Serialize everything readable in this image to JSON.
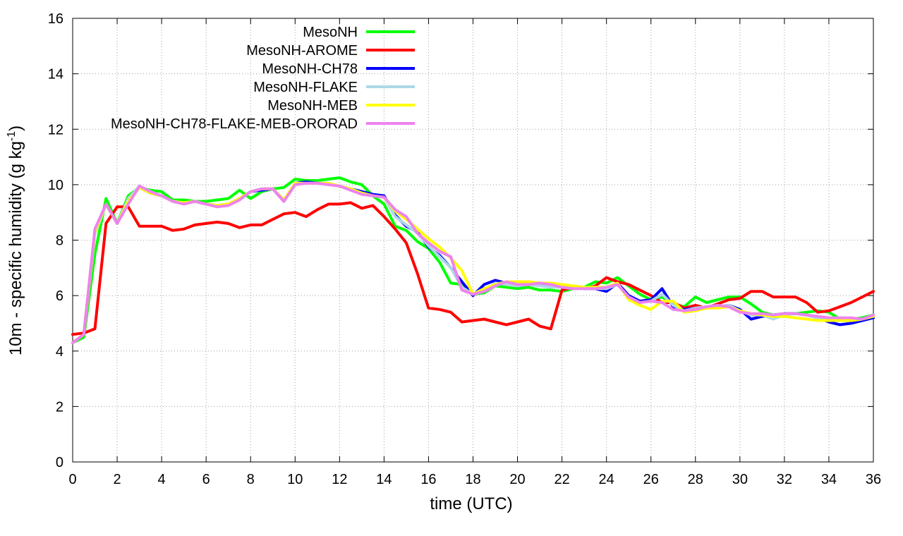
{
  "chart_data": {
    "type": "line",
    "title": "",
    "xlabel": "time (UTC)",
    "ylabel_main": "10m - specific humidity (g kg",
    "ylabel_sup": "-1",
    "ylabel_close": ")",
    "xlim": [
      0,
      36
    ],
    "ylim": [
      0,
      16
    ],
    "xticks": [
      0,
      2,
      4,
      6,
      8,
      10,
      12,
      14,
      16,
      18,
      20,
      22,
      24,
      26,
      28,
      30,
      32,
      34,
      36
    ],
    "yticks": [
      0,
      2,
      4,
      6,
      8,
      10,
      12,
      14,
      16
    ],
    "grid": true,
    "legend_position": "top-left",
    "series": [
      {
        "name": "MesoNH",
        "color": "#00ff00",
        "x": [
          0,
          0.5,
          1,
          1.5,
          2,
          2.5,
          3,
          3.5,
          4,
          4.5,
          5,
          5.5,
          6,
          6.5,
          7,
          7.5,
          8,
          8.5,
          9,
          9.5,
          10,
          10.5,
          11,
          11.5,
          12,
          12.5,
          13,
          13.5,
          14,
          14.5,
          15,
          15.5,
          16,
          16.5,
          17,
          17.5,
          18,
          18.5,
          19,
          19.5,
          20,
          20.5,
          21,
          21.5,
          22,
          22.5,
          23,
          23.5,
          24,
          24.5,
          25,
          25.5,
          26,
          26.5,
          27,
          27.5,
          28,
          28.5,
          29,
          29.5,
          30,
          30.5,
          31,
          31.5,
          32,
          32.5,
          33,
          33.5,
          34,
          34.5,
          35,
          35.5,
          36
        ],
        "values": [
          4.3,
          4.5,
          7.5,
          9.5,
          8.6,
          9.6,
          9.9,
          9.8,
          9.75,
          9.45,
          9.45,
          9.4,
          9.4,
          9.45,
          9.5,
          9.8,
          9.5,
          9.75,
          9.85,
          9.9,
          10.2,
          10.15,
          10.15,
          10.2,
          10.25,
          10.1,
          10.0,
          9.6,
          9.3,
          8.5,
          8.35,
          7.95,
          7.7,
          7.2,
          6.45,
          6.4,
          6.05,
          6.1,
          6.35,
          6.3,
          6.25,
          6.3,
          6.2,
          6.2,
          6.15,
          6.25,
          6.3,
          6.5,
          6.45,
          6.65,
          6.35,
          6.05,
          5.85,
          5.95,
          5.7,
          5.6,
          5.95,
          5.75,
          5.85,
          5.95,
          5.95,
          5.7,
          5.4,
          5.3,
          5.35,
          5.35,
          5.4,
          5.45,
          5.4,
          5.15,
          5.15,
          5.2,
          5.3
        ]
      },
      {
        "name": "MesoNH-AROME",
        "color": "#ff0000",
        "x": [
          0,
          0.5,
          1,
          1.5,
          2,
          2.5,
          3,
          3.5,
          4,
          4.5,
          5,
          5.5,
          6,
          6.5,
          7,
          7.5,
          8,
          8.5,
          9,
          9.5,
          10,
          10.5,
          11,
          11.5,
          12,
          12.5,
          13,
          13.5,
          14,
          14.5,
          15,
          15.5,
          16,
          16.5,
          17,
          17.5,
          18,
          18.5,
          19,
          19.5,
          20,
          20.5,
          21,
          21.5,
          22,
          22.5,
          23,
          23.5,
          24,
          24.5,
          25,
          25.5,
          26,
          26.5,
          27,
          27.5,
          28,
          28.5,
          29,
          29.5,
          30,
          30.5,
          31,
          31.5,
          32,
          32.5,
          33,
          33.5,
          34,
          34.5,
          35,
          35.5,
          36
        ],
        "values": [
          4.6,
          4.65,
          4.8,
          8.6,
          9.2,
          9.2,
          8.5,
          8.5,
          8.5,
          8.35,
          8.4,
          8.55,
          8.6,
          8.65,
          8.6,
          8.45,
          8.55,
          8.55,
          8.75,
          8.95,
          9.0,
          8.85,
          9.1,
          9.3,
          9.3,
          9.35,
          9.15,
          9.25,
          8.85,
          8.4,
          7.9,
          6.8,
          5.55,
          5.5,
          5.4,
          5.05,
          5.1,
          5.15,
          5.05,
          4.95,
          5.05,
          5.15,
          4.9,
          4.8,
          6.2,
          6.3,
          6.25,
          6.35,
          6.65,
          6.5,
          6.4,
          6.2,
          6.0,
          5.75,
          5.75,
          5.55,
          5.65,
          5.55,
          5.7,
          5.85,
          5.9,
          6.15,
          6.15,
          5.95,
          5.95,
          5.95,
          5.75,
          5.4,
          5.45,
          5.6,
          5.75,
          5.95,
          6.15
        ]
      },
      {
        "name": "MesoNH-CH78",
        "color": "#0000ff",
        "x": [
          0,
          0.5,
          1,
          1.5,
          2,
          2.5,
          3,
          3.5,
          4,
          4.5,
          5,
          5.5,
          6,
          6.5,
          7,
          7.5,
          8,
          8.5,
          9,
          9.5,
          10,
          10.5,
          11,
          11.5,
          12,
          12.5,
          13,
          13.5,
          14,
          14.5,
          15,
          15.5,
          16,
          16.5,
          17,
          17.5,
          18,
          18.5,
          19,
          19.5,
          20,
          20.5,
          21,
          21.5,
          22,
          22.5,
          23,
          23.5,
          24,
          24.5,
          25,
          25.5,
          26,
          26.5,
          27,
          27.5,
          28,
          28.5,
          29,
          29.5,
          30,
          30.5,
          31,
          31.5,
          32,
          32.5,
          33,
          33.5,
          34,
          34.5,
          35,
          35.5,
          36
        ],
        "values": [
          4.3,
          4.6,
          8.3,
          9.3,
          8.6,
          9.4,
          9.9,
          9.7,
          9.6,
          9.4,
          9.35,
          9.4,
          9.3,
          9.25,
          9.3,
          9.5,
          9.75,
          9.8,
          9.85,
          9.4,
          10.05,
          10.1,
          10.05,
          10.05,
          9.95,
          9.85,
          9.75,
          9.65,
          9.6,
          8.9,
          8.5,
          8.3,
          7.75,
          7.45,
          7.0,
          6.5,
          6.0,
          6.4,
          6.55,
          6.45,
          6.35,
          6.4,
          6.4,
          6.35,
          6.3,
          6.3,
          6.25,
          6.25,
          6.15,
          6.45,
          6.0,
          5.8,
          5.85,
          6.25,
          5.6,
          5.5,
          5.55,
          5.55,
          5.6,
          5.65,
          5.5,
          5.15,
          5.25,
          5.3,
          5.35,
          5.35,
          5.3,
          5.2,
          5.05,
          4.95,
          5.0,
          5.1,
          5.2
        ]
      },
      {
        "name": "MesoNH-FLAKE",
        "color": "#add8e6",
        "x": [
          0,
          0.5,
          1,
          1.5,
          2,
          2.5,
          3,
          3.5,
          4,
          4.5,
          5,
          5.5,
          6,
          6.5,
          7,
          7.5,
          8,
          8.5,
          9,
          9.5,
          10,
          10.5,
          11,
          11.5,
          12,
          12.5,
          13,
          13.5,
          14,
          14.5,
          15,
          15.5,
          16,
          16.5,
          17,
          17.5,
          18,
          18.5,
          19,
          19.5,
          20,
          20.5,
          21,
          21.5,
          22,
          22.5,
          23,
          23.5,
          24,
          24.5,
          25,
          25.5,
          26,
          26.5,
          27,
          27.5,
          28,
          28.5,
          29,
          29.5,
          30,
          30.5,
          31,
          31.5,
          32,
          32.5,
          33,
          33.5,
          34,
          34.5,
          35,
          35.5,
          36
        ],
        "values": [
          4.3,
          4.6,
          8.2,
          9.3,
          8.6,
          9.5,
          9.95,
          9.75,
          9.6,
          9.4,
          9.35,
          9.4,
          9.3,
          9.25,
          9.3,
          9.5,
          9.75,
          9.85,
          9.85,
          9.45,
          10.05,
          10.05,
          10.05,
          10.05,
          9.95,
          9.85,
          9.7,
          9.6,
          9.55,
          8.85,
          8.55,
          8.25,
          7.8,
          7.4,
          7.0,
          6.3,
          6.05,
          6.2,
          6.45,
          6.4,
          6.35,
          6.4,
          6.35,
          6.3,
          6.3,
          6.25,
          6.25,
          6.25,
          6.25,
          6.4,
          5.95,
          5.75,
          5.8,
          6.05,
          5.65,
          5.45,
          5.55,
          5.6,
          5.6,
          5.65,
          5.45,
          5.3,
          5.3,
          5.15,
          5.3,
          5.35,
          5.3,
          5.2,
          5.15,
          5.1,
          5.1,
          5.15,
          5.3
        ]
      },
      {
        "name": "MesoNH-MEB",
        "color": "#ffff00",
        "x": [
          0,
          0.5,
          1,
          1.5,
          2,
          2.5,
          3,
          3.5,
          4,
          4.5,
          5,
          5.5,
          6,
          6.5,
          7,
          7.5,
          8,
          8.5,
          9,
          9.5,
          10,
          10.5,
          11,
          11.5,
          12,
          12.5,
          13,
          13.5,
          14,
          14.5,
          15,
          15.5,
          16,
          16.5,
          17,
          17.5,
          18,
          18.5,
          19,
          19.5,
          20,
          20.5,
          21,
          21.5,
          22,
          22.5,
          23,
          23.5,
          24,
          24.5,
          25,
          25.5,
          26,
          26.5,
          27,
          27.5,
          28,
          28.5,
          29,
          29.5,
          30,
          30.5,
          31,
          31.5,
          32,
          32.5,
          33,
          33.5,
          34,
          34.5,
          35,
          35.5,
          36
        ],
        "values": [
          4.3,
          4.6,
          8.3,
          9.3,
          8.6,
          9.4,
          9.9,
          9.7,
          9.6,
          9.4,
          9.35,
          9.4,
          9.3,
          9.25,
          9.3,
          9.5,
          9.75,
          9.85,
          9.85,
          9.45,
          10.05,
          10.05,
          10.05,
          10.05,
          9.95,
          9.85,
          9.7,
          9.6,
          9.55,
          9.05,
          8.75,
          8.4,
          8.05,
          7.75,
          7.35,
          6.9,
          6.05,
          6.25,
          6.4,
          6.5,
          6.5,
          6.5,
          6.45,
          6.45,
          6.4,
          6.35,
          6.3,
          6.3,
          6.3,
          6.45,
          5.85,
          5.65,
          5.5,
          5.8,
          5.8,
          5.4,
          5.45,
          5.55,
          5.55,
          5.6,
          5.45,
          5.35,
          5.3,
          5.25,
          5.25,
          5.2,
          5.15,
          5.1,
          5.1,
          5.1,
          5.1,
          5.15,
          5.25
        ]
      },
      {
        "name": "MesoNH-CH78-FLAKE-MEB-ORORAD",
        "color": "#ee82ee",
        "x": [
          0,
          0.5,
          1,
          1.5,
          2,
          2.5,
          3,
          3.5,
          4,
          4.5,
          5,
          5.5,
          6,
          6.5,
          7,
          7.5,
          8,
          8.5,
          9,
          9.5,
          10,
          10.5,
          11,
          11.5,
          12,
          12.5,
          13,
          13.5,
          14,
          14.5,
          15,
          15.5,
          16,
          16.5,
          17,
          17.5,
          18,
          18.5,
          19,
          19.5,
          20,
          20.5,
          21,
          21.5,
          22,
          22.5,
          23,
          23.5,
          24,
          24.5,
          25,
          25.5,
          26,
          26.5,
          27,
          27.5,
          28,
          28.5,
          29,
          29.5,
          30,
          30.5,
          31,
          31.5,
          32,
          32.5,
          33,
          33.5,
          34,
          34.5,
          35,
          35.5,
          36
        ],
        "values": [
          4.3,
          4.6,
          8.4,
          9.3,
          8.6,
          9.3,
          9.95,
          9.75,
          9.6,
          9.4,
          9.3,
          9.4,
          9.3,
          9.2,
          9.25,
          9.45,
          9.75,
          9.85,
          9.85,
          9.4,
          10.0,
          10.05,
          10.05,
          10.0,
          9.95,
          9.8,
          9.65,
          9.6,
          9.55,
          9.1,
          8.85,
          8.25,
          7.9,
          7.6,
          7.4,
          6.2,
          6.05,
          6.15,
          6.35,
          6.5,
          6.4,
          6.4,
          6.45,
          6.4,
          6.3,
          6.25,
          6.25,
          6.25,
          6.3,
          6.4,
          5.95,
          5.75,
          5.8,
          5.75,
          5.5,
          5.45,
          5.5,
          5.6,
          5.65,
          5.6,
          5.4,
          5.35,
          5.35,
          5.3,
          5.35,
          5.35,
          5.3,
          5.25,
          5.2,
          5.2,
          5.2,
          5.15,
          5.3
        ]
      }
    ]
  }
}
